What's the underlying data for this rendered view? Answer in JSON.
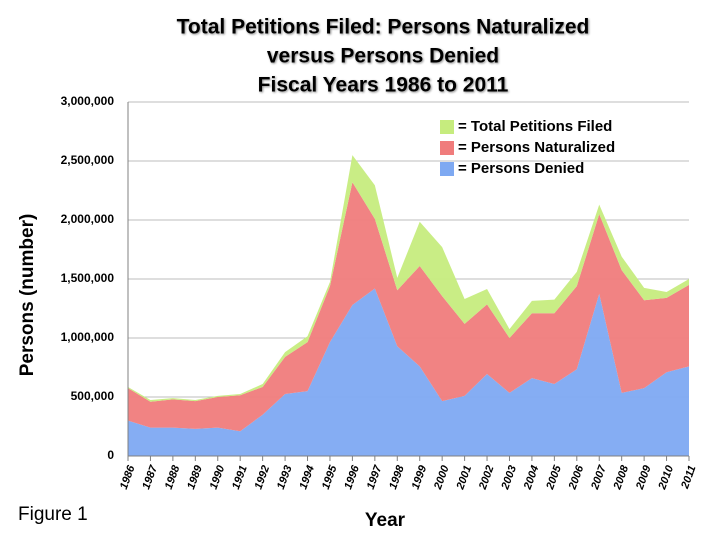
{
  "chart_data": {
    "type": "stacked_area",
    "title": [
      "Total Petitions Filed: Persons Naturalized",
      "versus Persons Denied",
      "Fiscal Years 1986 to 2011"
    ],
    "x_label": "Year",
    "y_label": "Persons (number)",
    "annotation": "Figure 1",
    "categories": [
      "1986",
      "1987",
      "1988",
      "1989",
      "1990",
      "1991",
      "1992",
      "1993",
      "1994",
      "1995",
      "1996",
      "1997",
      "1998",
      "1999",
      "2000",
      "2001",
      "2002",
      "2003",
      "2004",
      "2005",
      "2006",
      "2007",
      "2008",
      "2009",
      "2010",
      "2011"
    ],
    "series": [
      {
        "name": "= Persons Denied",
        "color": "#7ea9f2",
        "values": [
          300000,
          240000,
          240000,
          230000,
          240000,
          210000,
          350000,
          525000,
          550000,
          965000,
          1280000,
          1420000,
          930000,
          760000,
          465000,
          510000,
          695000,
          535000,
          660000,
          610000,
          735000,
          1375000,
          535000,
          575000,
          710000,
          760000
        ]
      },
      {
        "name": "= Persons Naturalized",
        "color": "#f07c7c",
        "values": [
          275000,
          220000,
          240000,
          235000,
          260000,
          305000,
          235000,
          315000,
          415000,
          475000,
          1040000,
          590000,
          475000,
          850000,
          890000,
          610000,
          590000,
          465000,
          550000,
          600000,
          705000,
          675000,
          1040000,
          745000,
          630000,
          690000
        ]
      },
      {
        "name": "= Total Petitions Filed",
        "color": "#c6ec7e",
        "values": [
          10000,
          15000,
          10000,
          10000,
          10000,
          10000,
          25000,
          40000,
          50000,
          35000,
          230000,
          285000,
          105000,
          375000,
          415000,
          210000,
          130000,
          75000,
          105000,
          115000,
          120000,
          80000,
          115000,
          105000,
          50000,
          50000
        ]
      }
    ],
    "ylim": [
      0,
      3000000
    ],
    "yticks": [
      0,
      {
        "value": 500000,
        "label": "500,000"
      },
      {
        "value": 1000000,
        "label": "1,000,000"
      },
      {
        "value": 1500000,
        "label": "1,500,000"
      },
      {
        "value": 2000000,
        "label": "2,000,000"
      },
      {
        "value": 2500000,
        "label": "2,500,000"
      },
      {
        "value": 3000000,
        "label": "3,000,000"
      }
    ],
    "grid": true,
    "legend": "top-right"
  }
}
